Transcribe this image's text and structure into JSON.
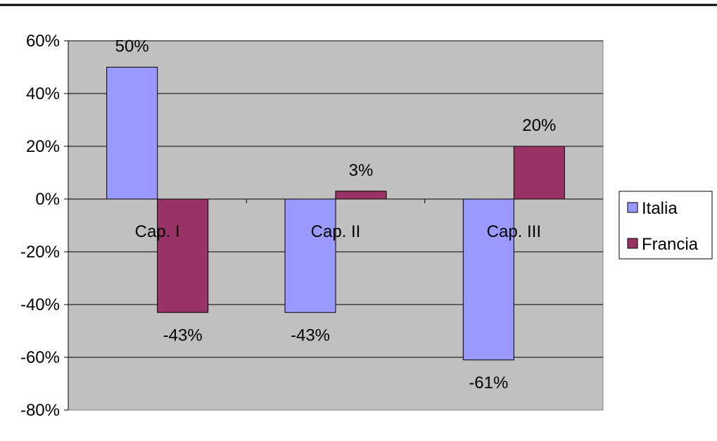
{
  "chart_data": {
    "type": "bar",
    "categories": [
      "Cap. I",
      "Cap. II",
      "Cap. III"
    ],
    "series": [
      {
        "name": "Italia",
        "values": [
          50,
          -43,
          -61
        ],
        "color": "#9999ff",
        "labels": [
          "50%",
          "-43%",
          "-61%"
        ]
      },
      {
        "name": "Francia",
        "values": [
          -43,
          3,
          20
        ],
        "color": "#993366",
        "labels": [
          "-43%",
          "3%",
          "20%"
        ]
      }
    ],
    "ylim": [
      -80,
      60
    ],
    "yticks": [
      60,
      40,
      20,
      0,
      -20,
      -40,
      -60,
      -80
    ],
    "ytick_labels": [
      "60%",
      "40%",
      "20%",
      "0%",
      "-20%",
      "-40%",
      "-60%",
      "-80%"
    ],
    "grid": true,
    "plot_background": "#c0c0c0",
    "legend_position": "right",
    "title": "",
    "xlabel": "",
    "ylabel": ""
  }
}
